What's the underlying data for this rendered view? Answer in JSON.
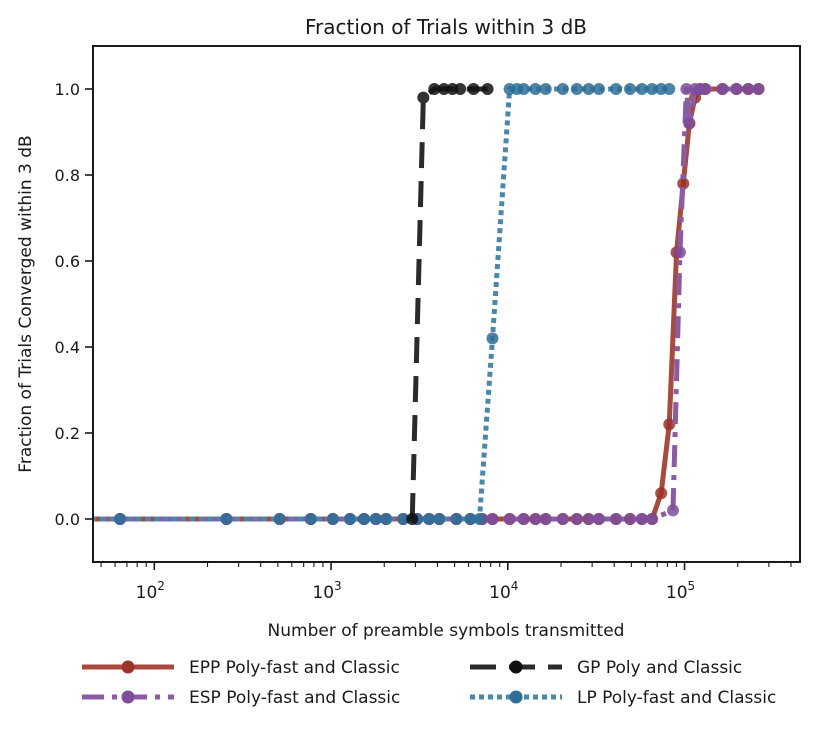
{
  "chart_data": {
    "type": "line",
    "title": "Fraction of Trials within 3 dB",
    "xlabel": "Number of preamble symbols transmitted",
    "ylabel": "Fraction of Trials Converged within 3 dB",
    "xscale": "log",
    "xlim": [
      45,
      450000
    ],
    "ylim": [
      -0.1,
      1.1
    ],
    "yticks": [
      0.0,
      0.2,
      0.4,
      0.6,
      0.8,
      1.0
    ],
    "ytick_labels": [
      "0.0",
      "0.2",
      "0.4",
      "0.6",
      "0.8",
      "1.0"
    ],
    "xticks": [
      100,
      1000,
      10000,
      100000
    ],
    "xtick_labels": [
      {
        "base": "10",
        "exp": "2"
      },
      {
        "base": "10",
        "exp": "3"
      },
      {
        "base": "10",
        "exp": "4"
      },
      {
        "base": "10",
        "exp": "5"
      }
    ],
    "grid": false,
    "legend": "bottom-outside",
    "series": [
      {
        "name": "EPP Poly-fast and Classic",
        "color": "#a84a3e",
        "marker_color": "#9c3328",
        "style": "solid",
        "x": [
          0,
          64,
          256,
          512,
          768,
          1024,
          1280,
          1536,
          1792,
          2048,
          2560,
          3072,
          3584,
          4096,
          5120,
          6144,
          7168,
          8192,
          10240,
          12288,
          14336,
          16384,
          20480,
          24576,
          28672,
          32768,
          40960,
          49152,
          57344,
          65536,
          73728,
          81920,
          90112,
          98304,
          106496,
          114688,
          122880,
          131072,
          163840,
          196608,
          229376,
          262144
        ],
        "y": [
          0,
          0,
          0,
          0,
          0,
          0,
          0,
          0,
          0,
          0,
          0,
          0,
          0,
          0,
          0,
          0,
          0,
          0,
          0,
          0,
          0,
          0,
          0,
          0,
          0,
          0,
          0,
          0,
          0,
          0,
          0.06,
          0.22,
          0.62,
          0.78,
          0.92,
          0.98,
          1.0,
          1.0,
          1.0,
          1.0,
          1.0,
          1.0
        ]
      },
      {
        "name": "ESP Poly-fast and Classic",
        "color": "#8a5ca6",
        "marker_color": "#7d4c9c",
        "style": "dashdot",
        "x": [
          0,
          64,
          256,
          512,
          768,
          1024,
          1280,
          1536,
          1792,
          2048,
          2560,
          3072,
          3584,
          4096,
          5120,
          6144,
          7168,
          8192,
          10240,
          12288,
          14336,
          16384,
          20480,
          24576,
          28672,
          32768,
          40960,
          49152,
          57344,
          65536,
          86016,
          94208,
          102400,
          106496,
          114688,
          122880,
          131072,
          163840,
          196608,
          229376,
          262144
        ],
        "y": [
          0,
          0,
          0,
          0,
          0,
          0,
          0,
          0,
          0,
          0,
          0,
          0,
          0,
          0,
          0,
          0,
          0,
          0,
          0,
          0,
          0,
          0,
          0,
          0,
          0,
          0,
          0,
          0,
          0,
          0,
          0.02,
          0.62,
          1.0,
          0.92,
          1.0,
          1.0,
          1.0,
          1.0,
          1.0,
          1.0,
          1.0
        ]
      },
      {
        "name": "GP Poly and Classic",
        "color": "#2b2b2b",
        "marker_color": "#111111",
        "style": "dashed",
        "x": [
          2880,
          3328,
          3840,
          4352,
          4864,
          5376,
          6400,
          7680
        ],
        "y": [
          0,
          0.98,
          1.0,
          1.0,
          1.0,
          1.0,
          1.0,
          1.0
        ]
      },
      {
        "name": "LP Poly-fast and Classic",
        "color": "#4a88ab",
        "marker_color": "#2e6e96",
        "style": "dotted",
        "x": [
          0,
          64,
          256,
          512,
          768,
          1024,
          1280,
          1536,
          1792,
          2048,
          2560,
          3072,
          3584,
          4096,
          5120,
          6144,
          6912,
          8192,
          10240,
          11264,
          12288,
          14336,
          16384,
          20480,
          24576,
          28672,
          32768,
          40960,
          49152,
          57344,
          65536,
          73728,
          81920
        ],
        "y": [
          0,
          0,
          0,
          0,
          0,
          0,
          0,
          0,
          0,
          0,
          0,
          0,
          0,
          0,
          0,
          0,
          0,
          0.42,
          1.0,
          1.0,
          1.0,
          1.0,
          1.0,
          1.0,
          1.0,
          1.0,
          1.0,
          1.0,
          1.0,
          1.0,
          1.0,
          1.0,
          1.0
        ]
      }
    ]
  }
}
